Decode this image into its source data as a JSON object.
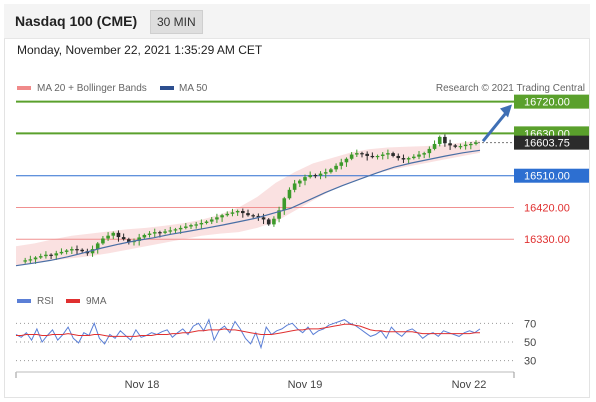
{
  "header": {
    "title": "Nasdaq 100 (CME)",
    "timeframe": "30 MIN"
  },
  "datetime": "Monday, November 22, 2021 1:35:29 AM CET",
  "legend": {
    "ma_bb": "MA 20 + Bollinger Bands",
    "ma50": "MA 50",
    "credit": "Research © 2021 Trading Central"
  },
  "rsi_legend": {
    "rsi": "RSI",
    "ma9": "9MA"
  },
  "colors": {
    "green": "#5aa02c",
    "blue": "#2d6fd1",
    "red": "#e03030",
    "candle_up": "#3c9a2a",
    "candle_down": "#2b2b2b",
    "ma50": "#4a6fa5",
    "bollinger": "#f6c9c9",
    "arrow": "#3f6fb5"
  },
  "chart_data": [
    {
      "type": "candlestick",
      "x_ticks": [
        "Nov 18",
        "Nov 19",
        "Nov 22"
      ],
      "ylim": [
        16220,
        16770
      ],
      "levels": [
        {
          "label": "16720.00",
          "value": 16720,
          "color": "green"
        },
        {
          "label": "16630.00",
          "value": 16630,
          "color": "green"
        },
        {
          "label": "16603.75",
          "value": 16603.75,
          "color": "current"
        },
        {
          "label": "16510.00",
          "value": 16510,
          "color": "blue"
        },
        {
          "label": "16420.00",
          "value": 16420,
          "color": "red"
        },
        {
          "label": "16330.00",
          "value": 16330,
          "color": "red"
        }
      ],
      "close_path": [
        16268,
        16270,
        16273,
        16278,
        16282,
        16286,
        16284,
        16290,
        16294,
        16298,
        16302,
        16300,
        16296,
        16290,
        16302,
        16318,
        16332,
        16340,
        16348,
        16336,
        16330,
        16322,
        16325,
        16335,
        16342,
        16346,
        16350,
        16348,
        16352,
        16355,
        16358,
        16362,
        16366,
        16370,
        16372,
        16376,
        16380,
        16386,
        16392,
        16398,
        16402,
        16406,
        16410,
        16404,
        16398,
        16396,
        16392,
        16386,
        16372,
        16388,
        16412,
        16446,
        16470,
        16488,
        16496,
        16506,
        16512,
        16510,
        16516,
        16520,
        16528,
        16538,
        16548,
        16558,
        16570,
        16574,
        16572,
        16566,
        16563,
        16566,
        16570,
        16574,
        16566,
        16560,
        16556,
        16560,
        16564,
        16570,
        16574,
        16586,
        16600,
        16620,
        16602,
        16596,
        16592,
        16594,
        16598,
        16600,
        16604
      ],
      "ma50": [
        16255,
        16262,
        16270,
        16280,
        16292,
        16305,
        16316,
        16326,
        16334,
        16344,
        16352,
        16361,
        16370,
        16380,
        16390,
        16404,
        16418,
        16440,
        16462,
        16482,
        16500,
        16518,
        16534,
        16546,
        16556,
        16566,
        16575,
        16582
      ],
      "bollinger_upper": [
        16310,
        16318,
        16330,
        16340,
        16346,
        16352,
        16358,
        16362,
        16368,
        16375,
        16385,
        16400,
        16420,
        16450,
        16490,
        16520,
        16545,
        16560,
        16575,
        16585,
        16590,
        16592,
        16594,
        16598,
        16604,
        16610
      ],
      "bollinger_lower": [
        16255,
        16262,
        16270,
        16276,
        16282,
        16290,
        16300,
        16310,
        16320,
        16330,
        16340,
        16346,
        16350,
        16362,
        16380,
        16410,
        16440,
        16468,
        16492,
        16510,
        16524,
        16535,
        16545,
        16555,
        16565,
        16575
      ]
    },
    {
      "type": "line",
      "title": "RSI",
      "yticks": [
        70,
        50,
        30
      ],
      "ylim": [
        20,
        80
      ],
      "series": [
        {
          "name": "RSI",
          "color": "#5b7fd6",
          "values": [
            58,
            55,
            60,
            52,
            64,
            50,
            57,
            63,
            52,
            58,
            66,
            54,
            49,
            60,
            57,
            70,
            54,
            48,
            58,
            54,
            62,
            57,
            52,
            63,
            55,
            57,
            60,
            58,
            61,
            63,
            55,
            60,
            64,
            58,
            67,
            70,
            62,
            74,
            52,
            63,
            67,
            60,
            72,
            64,
            54,
            48,
            60,
            44,
            66,
            58,
            62,
            64,
            68,
            70,
            64,
            60,
            66,
            58,
            62,
            64,
            68,
            70,
            72,
            74,
            70,
            68,
            64,
            60,
            56,
            58,
            62,
            54,
            66,
            60,
            56,
            62,
            64,
            60,
            54,
            58,
            60,
            56,
            62,
            60,
            58,
            56,
            60,
            62,
            60,
            64
          ]
        },
        {
          "name": "9MA",
          "color": "#e03030",
          "values": [
            57,
            57,
            58,
            58,
            58,
            57,
            57,
            58,
            58,
            58,
            59,
            58,
            57,
            57,
            57,
            58,
            58,
            57,
            56,
            56,
            56,
            56,
            56,
            56,
            57,
            57,
            57,
            58,
            58,
            58,
            59,
            59,
            60,
            60,
            61,
            62,
            62,
            63,
            63,
            63,
            64,
            63,
            63,
            62,
            61,
            60,
            59,
            58,
            58,
            58,
            59,
            60,
            61,
            62,
            63,
            63,
            64,
            64,
            64,
            65,
            66,
            67,
            68,
            69,
            69,
            68,
            67,
            65,
            63,
            62,
            62,
            61,
            61,
            61,
            61,
            61,
            61,
            60,
            59,
            59,
            59,
            59,
            59,
            59,
            59,
            59,
            59,
            59,
            60,
            60
          ]
        }
      ]
    }
  ]
}
